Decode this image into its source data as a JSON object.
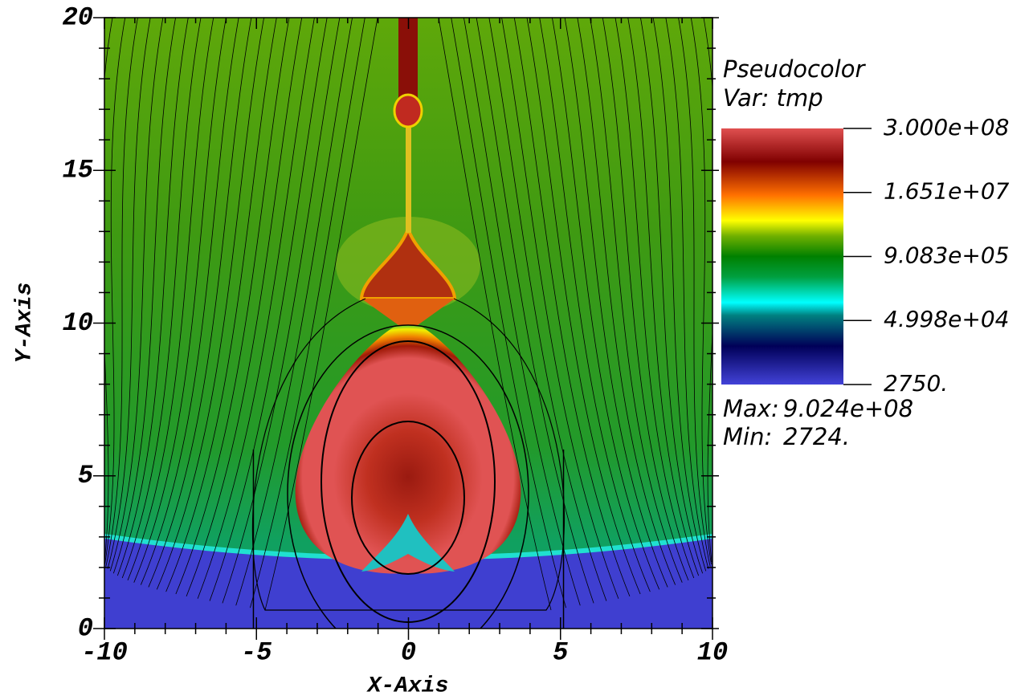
{
  "chart_data": {
    "type": "pseudocolor",
    "xlabel": "X-Axis",
    "ylabel": "Y-Axis",
    "xlim": [
      -10,
      10
    ],
    "xticks": [
      -10,
      -5,
      0,
      5,
      10
    ],
    "ylim": [
      0,
      20
    ],
    "yticks": [
      0,
      5,
      10,
      15,
      20
    ],
    "legend": {
      "title": "Pseudocolor",
      "variable": "Var: tmp",
      "scale": "log",
      "ticks": [
        {
          "value": 300000000,
          "label": "3.000e+08"
        },
        {
          "value": 16510000,
          "label": "1.651e+07"
        },
        {
          "value": 908300,
          "label": "9.083e+05"
        },
        {
          "value": 49980,
          "label": "4.998e+04"
        },
        {
          "value": 2750,
          "label": "2750."
        }
      ],
      "max_label": "Max:",
      "max": {
        "value": 902400000,
        "label": "9.024e+08"
      },
      "min_label": "Min:",
      "min": {
        "value": 2724,
        "label": "2724."
      }
    }
  }
}
